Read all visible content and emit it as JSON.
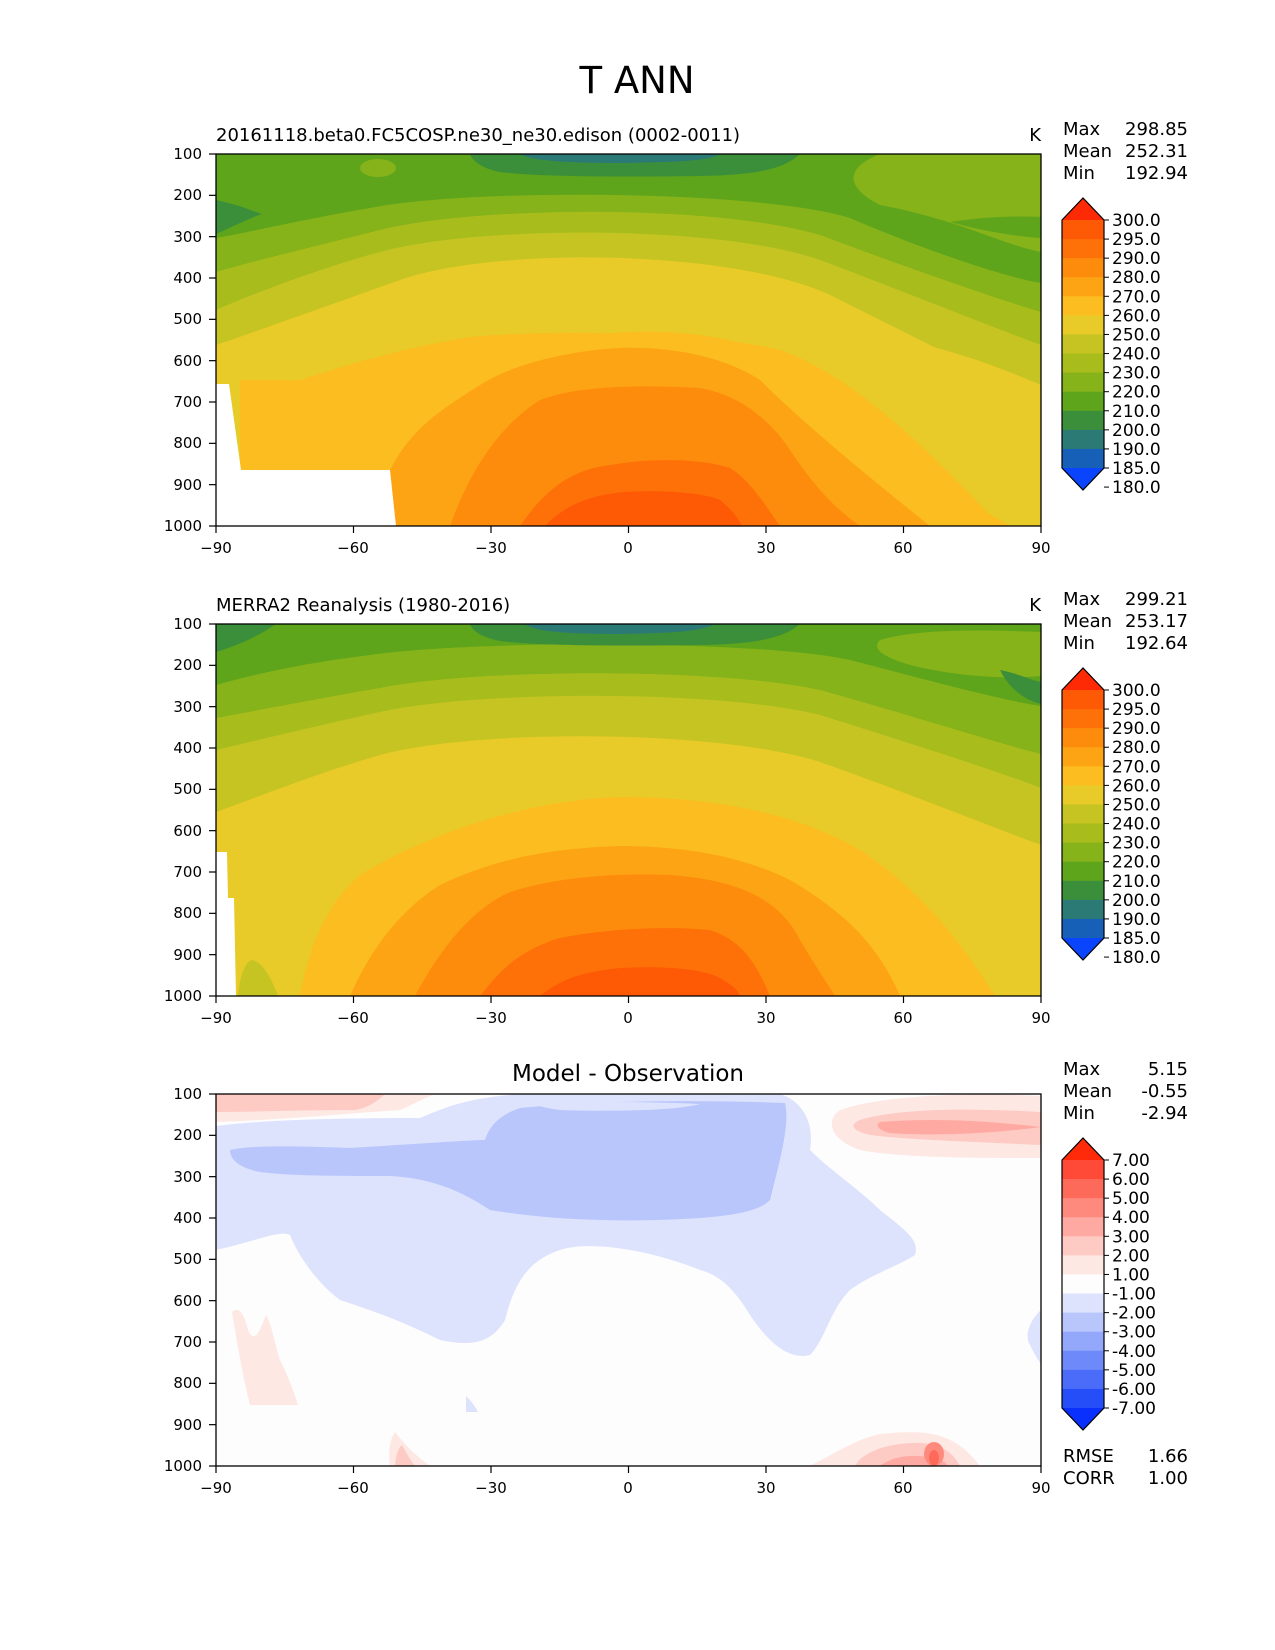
{
  "figure_title": "T ANN",
  "chart_data": [
    {
      "type": "heatmap",
      "title": "20161118.beta0.FC5COSP.ne30_ne30.edison (0002-0011)",
      "units": "K",
      "stats": [
        {
          "label": "Max",
          "value": "298.85"
        },
        {
          "label": "Mean",
          "value": "252.31"
        },
        {
          "label": "Min",
          "value": "192.94"
        }
      ],
      "x_ticks": [
        "−90",
        "−60",
        "−30",
        "0",
        "30",
        "60",
        "90"
      ],
      "y_ticks": [
        "100",
        "200",
        "300",
        "400",
        "500",
        "600",
        "700",
        "800",
        "900",
        "1000"
      ],
      "xlim": [
        -90,
        90
      ],
      "ylim": [
        1000,
        100
      ],
      "colorbar": {
        "labels": [
          "300.0",
          "295.0",
          "290.0",
          "280.0",
          "270.0",
          "260.0",
          "250.0",
          "240.0",
          "230.0",
          "220.0",
          "210.0",
          "200.0",
          "190.0",
          "185.0",
          "180.0"
        ],
        "colors": [
          "#fe2a05",
          "#fe5a05",
          "#fe7008",
          "#fe8c0c",
          "#fda414",
          "#fbbd1f",
          "#e8cb28",
          "#c6c422",
          "#a8bd1c",
          "#86b21a",
          "#5ea51b",
          "#3c8f3a",
          "#2c7a75",
          "#1760b8",
          "#0a44fc"
        ]
      }
    },
    {
      "type": "heatmap",
      "title": "MERRA2 Reanalysis (1980-2016)",
      "units": "K",
      "stats": [
        {
          "label": "Max",
          "value": "299.21"
        },
        {
          "label": "Mean",
          "value": "253.17"
        },
        {
          "label": "Min",
          "value": "192.64"
        }
      ],
      "x_ticks": [
        "−90",
        "−60",
        "−30",
        "0",
        "30",
        "60",
        "90"
      ],
      "y_ticks": [
        "100",
        "200",
        "300",
        "400",
        "500",
        "600",
        "700",
        "800",
        "900",
        "1000"
      ],
      "xlim": [
        -90,
        90
      ],
      "ylim": [
        1000,
        100
      ],
      "colorbar": {
        "labels": [
          "300.0",
          "295.0",
          "290.0",
          "280.0",
          "270.0",
          "260.0",
          "250.0",
          "240.0",
          "230.0",
          "220.0",
          "210.0",
          "200.0",
          "190.0",
          "185.0",
          "180.0"
        ],
        "colors": [
          "#fe2a05",
          "#fe5a05",
          "#fe7008",
          "#fe8c0c",
          "#fda414",
          "#fbbd1f",
          "#e8cb28",
          "#c6c422",
          "#a8bd1c",
          "#86b21a",
          "#5ea51b",
          "#3c8f3a",
          "#2c7a75",
          "#1760b8",
          "#0a44fc"
        ]
      }
    },
    {
      "type": "heatmap",
      "title": "Model - Observation",
      "units": "",
      "stats": [
        {
          "label": "Max",
          "value": "5.15"
        },
        {
          "label": "Mean",
          "value": "-0.55"
        },
        {
          "label": "Min",
          "value": "-2.94"
        }
      ],
      "footer_stats": [
        {
          "label": "RMSE",
          "value": "1.66"
        },
        {
          "label": "CORR",
          "value": "1.00"
        }
      ],
      "x_ticks": [
        "−90",
        "−60",
        "−30",
        "0",
        "30",
        "60",
        "90"
      ],
      "y_ticks": [
        "100",
        "200",
        "300",
        "400",
        "500",
        "600",
        "700",
        "800",
        "900",
        "1000"
      ],
      "xlim": [
        -90,
        90
      ],
      "ylim": [
        1000,
        100
      ],
      "colorbar": {
        "labels": [
          "7.00",
          "6.00",
          "5.00",
          "4.00",
          "3.00",
          "2.00",
          "1.00",
          "-1.00",
          "-2.00",
          "-3.00",
          "-4.00",
          "-5.00",
          "-6.00",
          "-7.00"
        ],
        "colors": [
          "#fe2a0a",
          "#fe4a36",
          "#fe6a5a",
          "#fe8a7e",
          "#feaaa2",
          "#fecac4",
          "#fee8e4",
          "#fdfdfd",
          "#dde3fd",
          "#b8c6fc",
          "#93a8fb",
          "#6e8afa",
          "#4a6cf9",
          "#254ef8",
          "#0a30fe"
        ]
      }
    }
  ]
}
